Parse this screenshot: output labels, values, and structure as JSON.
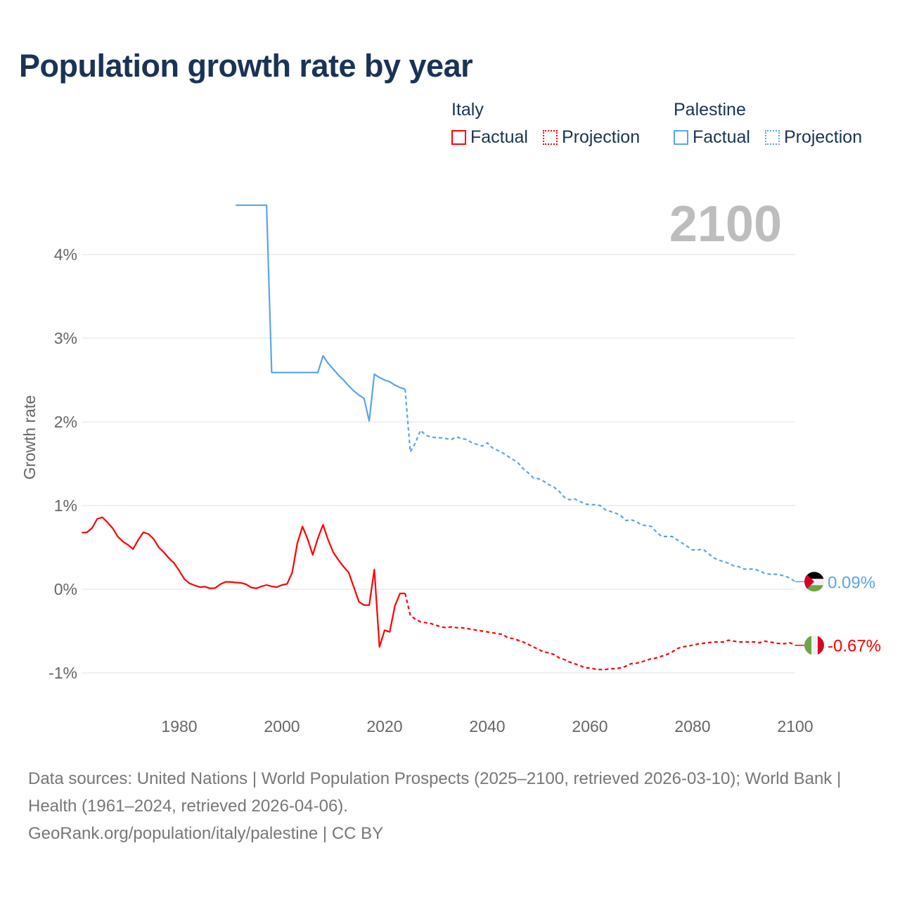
{
  "chart_data": {
    "type": "line",
    "title": "Population growth rate by year",
    "ylabel": "Growth rate",
    "xlabel": "",
    "xlim": [
      1961,
      2100
    ],
    "ylim": [
      -1.3,
      4.7
    ],
    "x_ticks": [
      1980,
      2000,
      2020,
      2040,
      2060,
      2080,
      2100
    ],
    "x_tick_labels": [
      "1980",
      "2000",
      "2020",
      "2040",
      "2060",
      "2080",
      "2100"
    ],
    "y_ticks": [
      4,
      3,
      2,
      1,
      0,
      -1
    ],
    "y_tick_labels": [
      "4%",
      "3%",
      "2%",
      "1%",
      "0%",
      "-1%"
    ],
    "grid": true,
    "year_watermark": "2100",
    "legend_position": "top-right",
    "series": [
      {
        "name": "Italy",
        "kind": "Factual",
        "color": "#ff0000",
        "start_year": 1961,
        "values": [
          0.675,
          0.68,
          0.73,
          0.84,
          0.86,
          0.8,
          0.73,
          0.63,
          0.57,
          0.53,
          0.48,
          0.59,
          0.68,
          0.66,
          0.6,
          0.5,
          0.44,
          0.37,
          0.31,
          0.22,
          0.12,
          0.07,
          0.045,
          0.025,
          0.03,
          0.01,
          0.014,
          0.06,
          0.087,
          0.087,
          0.08,
          0.076,
          0.06,
          0.022,
          0.01,
          0.034,
          0.05,
          0.034,
          0.025,
          0.05,
          0.064,
          0.2,
          0.55,
          0.75,
          0.6,
          0.41,
          0.61,
          0.77,
          0.59,
          0.44,
          0.35,
          0.27,
          0.2,
          0.025,
          -0.15,
          -0.19,
          -0.19,
          0.235,
          -0.69,
          -0.49,
          -0.51,
          -0.2,
          -0.05,
          -0.05
        ]
      },
      {
        "name": "Italy",
        "kind": "Projection",
        "color": "#ff0000",
        "start_year": 2025,
        "values": [
          -0.31,
          -0.36,
          -0.39,
          -0.4,
          -0.41,
          -0.43,
          -0.45,
          -0.46,
          -0.45,
          -0.46,
          -0.46,
          -0.47,
          -0.48,
          -0.49,
          -0.5,
          -0.51,
          -0.52,
          -0.53,
          -0.54,
          -0.58,
          -0.59,
          -0.61,
          -0.63,
          -0.66,
          -0.69,
          -0.72,
          -0.75,
          -0.76,
          -0.78,
          -0.82,
          -0.84,
          -0.87,
          -0.89,
          -0.91,
          -0.94,
          -0.94,
          -0.955,
          -0.96,
          -0.96,
          -0.95,
          -0.95,
          -0.94,
          -0.92,
          -0.89,
          -0.885,
          -0.87,
          -0.85,
          -0.83,
          -0.82,
          -0.8,
          -0.78,
          -0.75,
          -0.71,
          -0.69,
          -0.68,
          -0.67,
          -0.655,
          -0.647,
          -0.64,
          -0.63,
          -0.63,
          -0.63,
          -0.61,
          -0.62,
          -0.63,
          -0.63,
          -0.63,
          -0.63,
          -0.64,
          -0.62,
          -0.63,
          -0.64,
          -0.65,
          -0.65,
          -0.64,
          -0.67
        ]
      },
      {
        "name": "Palestine",
        "kind": "Factual",
        "color": "#5ba4ea",
        "start_year": 1991,
        "values": [
          4.59,
          4.59,
          4.59,
          4.59,
          4.59,
          4.59,
          4.59,
          2.59,
          2.59,
          2.59,
          2.59,
          2.59,
          2.59,
          2.59,
          2.59,
          2.59,
          2.59,
          2.79,
          2.7,
          2.63,
          2.56,
          2.5,
          2.43,
          2.37,
          2.32,
          2.28,
          2.01,
          2.57,
          2.53,
          2.5,
          2.48,
          2.44,
          2.41,
          2.39
        ]
      },
      {
        "name": "Palestine",
        "kind": "Projection",
        "color": "#5ba4ea",
        "start_year": 2025,
        "values": [
          1.64,
          1.75,
          1.9,
          1.84,
          1.82,
          1.81,
          1.81,
          1.8,
          1.79,
          1.82,
          1.8,
          1.79,
          1.75,
          1.73,
          1.71,
          1.75,
          1.69,
          1.66,
          1.63,
          1.59,
          1.55,
          1.51,
          1.44,
          1.39,
          1.33,
          1.32,
          1.29,
          1.25,
          1.22,
          1.17,
          1.1,
          1.07,
          1.08,
          1.05,
          1.02,
          1.01,
          1.01,
          1.0,
          0.95,
          0.93,
          0.91,
          0.88,
          0.82,
          0.83,
          0.81,
          0.77,
          0.76,
          0.75,
          0.68,
          0.63,
          0.63,
          0.63,
          0.59,
          0.55,
          0.51,
          0.47,
          0.47,
          0.48,
          0.43,
          0.38,
          0.35,
          0.33,
          0.31,
          0.28,
          0.27,
          0.24,
          0.24,
          0.24,
          0.22,
          0.19,
          0.18,
          0.18,
          0.17,
          0.16,
          0.13,
          0.09
        ]
      }
    ],
    "end_labels": [
      {
        "country": "Palestine",
        "value": 0.09,
        "text": "0.09%",
        "color": "#5ba4ea"
      },
      {
        "country": "Italy",
        "value": -0.67,
        "text": "-0.67%",
        "color": "#ff0000"
      }
    ]
  },
  "legend": {
    "groups": [
      {
        "name": "Italy",
        "color": "#ff0000",
        "factual": "Factual",
        "projection": "Projection"
      },
      {
        "name": "Palestine",
        "color": "#5ba4ea",
        "factual": "Factual",
        "projection": "Projection"
      }
    ]
  },
  "footer": {
    "sources": "Data sources: United Nations | World Population Prospects (2025–2100, retrieved 2026-03-10); World Bank | Health (1961–2024, retrieved 2026-04-06).",
    "credit": "GeoRank.org/population/italy/palestine | CC BY"
  }
}
